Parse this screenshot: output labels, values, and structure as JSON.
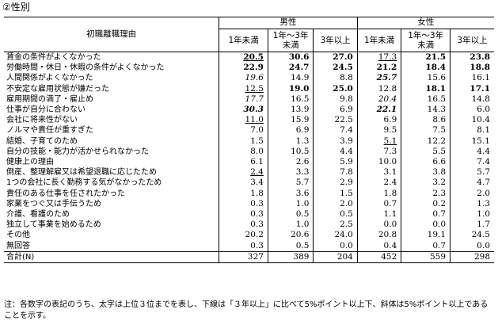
{
  "section_title": "②性別",
  "header": {
    "row_label": "初職離職理由",
    "groups": [
      "男性",
      "女性"
    ],
    "columns": [
      "1年未満",
      "1年～3年\n未満",
      "3年以上",
      "1年未満",
      "1年～3年\n未満",
      "3年以上"
    ]
  },
  "rows": [
    {
      "label": "賃金の条件がよくなかった",
      "values": [
        "20.5",
        "30.6",
        "27.0",
        "17.3",
        "21.5",
        "23.8"
      ],
      "styles": [
        "bold ul",
        "bold",
        "bold",
        "ul",
        "bold",
        "bold"
      ]
    },
    {
      "label": "労働時間・休日・休暇の条件がよくなかった",
      "values": [
        "22.9",
        "24.7",
        "24.5",
        "21.2",
        "18.4",
        "18.8"
      ],
      "styles": [
        "bold",
        "bold",
        "bold",
        "bold",
        "bold",
        "bold"
      ]
    },
    {
      "label": "人間関係がよくなかった",
      "values": [
        "19.6",
        "14.9",
        "8.8",
        "25.7",
        "15.6",
        "16.1"
      ],
      "styles": [
        "ital",
        "",
        "",
        "bold ital",
        "",
        ""
      ]
    },
    {
      "label": "不安定な雇用状態が嫌だった",
      "values": [
        "12.5",
        "19.0",
        "25.0",
        "12.8",
        "18.1",
        "17.1"
      ],
      "styles": [
        "ul",
        "bold",
        "bold",
        "",
        "bold",
        "bold"
      ]
    },
    {
      "label": "雇用期間の満了・雇止め",
      "values": [
        "17.7",
        "16.5",
        "9.8",
        "20.4",
        "16.5",
        "14.8"
      ],
      "styles": [
        "ital",
        "",
        "",
        "ital",
        "",
        ""
      ]
    },
    {
      "label": "仕事が自分に合わない",
      "values": [
        "30.3",
        "13.9",
        "6.9",
        "22.1",
        "14.3",
        "6.0"
      ],
      "styles": [
        "bold ital",
        "",
        "",
        "bold ital",
        "",
        ""
      ]
    },
    {
      "label": "会社に将来性がない",
      "values": [
        "11.0",
        "15.9",
        "22.5",
        "6.9",
        "8.6",
        "10.4"
      ],
      "styles": [
        "ul",
        "",
        "",
        "",
        "",
        ""
      ]
    },
    {
      "label": "ノルマや責任が重すぎた",
      "values": [
        "7.0",
        "6.9",
        "7.4",
        "9.5",
        "7.5",
        "8.1"
      ],
      "styles": [
        "",
        "",
        "",
        "",
        "",
        ""
      ]
    },
    {
      "label": "結婚、子育てのため",
      "values": [
        "1.5",
        "1.3",
        "3.9",
        "5.1",
        "12.2",
        "15.1"
      ],
      "styles": [
        "",
        "",
        "",
        "ul",
        "",
        ""
      ]
    },
    {
      "label": "自分の技能・能力が活かせられなかった",
      "values": [
        "8.0",
        "10.5",
        "4.4",
        "7.3",
        "5.5",
        "4.4"
      ],
      "styles": [
        "",
        "",
        "",
        "",
        "",
        ""
      ]
    },
    {
      "label": "健康上の理由",
      "values": [
        "6.1",
        "2.6",
        "5.9",
        "10.0",
        "6.6",
        "7.4"
      ],
      "styles": [
        "",
        "",
        "",
        "",
        "",
        ""
      ]
    },
    {
      "label": "倒産、整理解雇又は希望退職に応じたため",
      "values": [
        "2.4",
        "3.3",
        "7.8",
        "3.1",
        "3.8",
        "5.7"
      ],
      "styles": [
        "ul",
        "",
        "",
        "",
        "",
        ""
      ]
    },
    {
      "label": "1つの会社に長く勤務する気がなかったため",
      "values": [
        "3.4",
        "5.7",
        "2.9",
        "2.4",
        "3.2",
        "4.7"
      ],
      "styles": [
        "",
        "",
        "",
        "",
        "",
        ""
      ]
    },
    {
      "label": "責任のある仕事を任されたかった",
      "values": [
        "1.8",
        "3.6",
        "1.5",
        "1.8",
        "2.3",
        "2.0"
      ],
      "styles": [
        "",
        "",
        "",
        "",
        "",
        ""
      ]
    },
    {
      "label": "家業をつぐ又は手伝うため",
      "values": [
        "0.3",
        "1.0",
        "2.0",
        "0.7",
        "0.2",
        "1.3"
      ],
      "styles": [
        "",
        "",
        "",
        "",
        "",
        ""
      ]
    },
    {
      "label": "介護、看護のため",
      "values": [
        "0.3",
        "0.5",
        "0.5",
        "1.1",
        "0.7",
        "1.0"
      ],
      "styles": [
        "",
        "",
        "",
        "",
        "",
        ""
      ]
    },
    {
      "label": "独立して事業を始めるため",
      "values": [
        "0.3",
        "1.0",
        "2.5",
        "0.0",
        "0.0",
        "1.7"
      ],
      "styles": [
        "",
        "",
        "",
        "",
        "",
        ""
      ]
    },
    {
      "label": "その他",
      "values": [
        "20.2",
        "20.6",
        "24.0",
        "20.8",
        "19.1",
        "24.5"
      ],
      "styles": [
        "",
        "",
        "",
        "",
        "",
        ""
      ]
    },
    {
      "label": "無回答",
      "values": [
        "0.3",
        "0.5",
        "0.0",
        "0.4",
        "0.7",
        "0.0"
      ],
      "styles": [
        "",
        "",
        "",
        "",
        "",
        ""
      ]
    }
  ],
  "total": {
    "label": "合計(N)",
    "values": [
      "327",
      "389",
      "204",
      "452",
      "559",
      "298"
    ]
  },
  "note": "注：各数字の表記のうち、太字は上位３位までを表し、下線は「３年以上」に比べて5%ポイント以上下、斜体は5%ポイント以上であることを示す。"
}
